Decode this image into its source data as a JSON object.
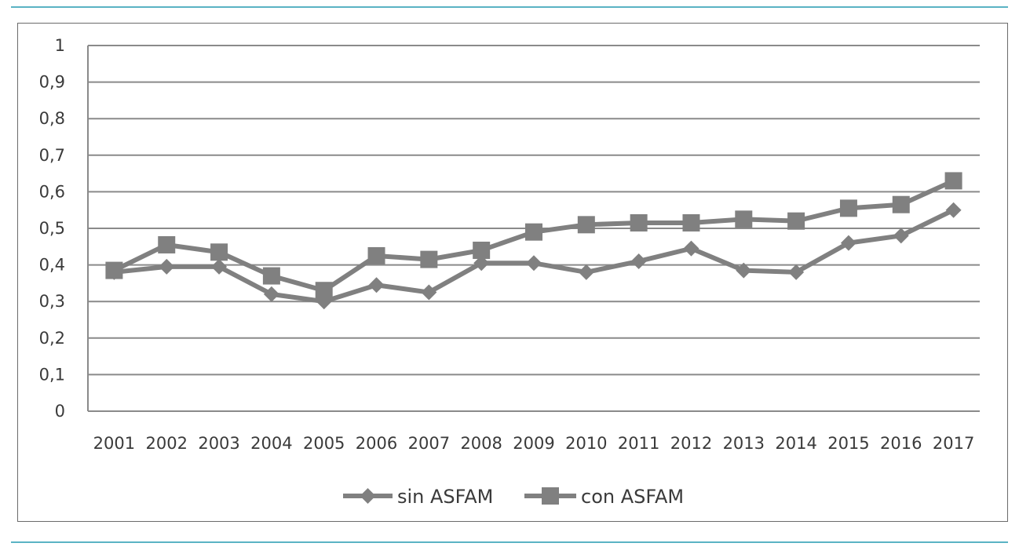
{
  "chart_data": {
    "type": "line",
    "title": "",
    "xlabel": "",
    "ylabel": "",
    "ylim": [
      0,
      1
    ],
    "yticks": [
      "0",
      "0,1",
      "0,2",
      "0,3",
      "0,4",
      "0,5",
      "0,6",
      "0,7",
      "0,8",
      "0,9",
      "1"
    ],
    "categories": [
      "2001",
      "2002",
      "2003",
      "2004",
      "2005",
      "2006",
      "2007",
      "2008",
      "2009",
      "2010",
      "2011",
      "2012",
      "2013",
      "2014",
      "2015",
      "2016",
      "2017"
    ],
    "grid": true,
    "legend_position": "bottom",
    "series": [
      {
        "name": "sin ASFAM",
        "marker": "diamond",
        "color": "#808080",
        "values": [
          0.38,
          0.395,
          0.395,
          0.32,
          0.3,
          0.345,
          0.325,
          0.405,
          0.405,
          0.38,
          0.41,
          0.445,
          0.385,
          0.38,
          0.46,
          0.48,
          0.55
        ]
      },
      {
        "name": "con ASFAM",
        "marker": "square",
        "color": "#808080",
        "values": [
          0.385,
          0.455,
          0.435,
          0.37,
          0.33,
          0.425,
          0.415,
          0.44,
          0.49,
          0.51,
          0.515,
          0.515,
          0.525,
          0.52,
          0.555,
          0.565,
          0.63
        ]
      }
    ]
  },
  "colors": {
    "accent_rule": "#5ab3c4",
    "gridline": "#8a8a8a",
    "series": "#808080"
  }
}
